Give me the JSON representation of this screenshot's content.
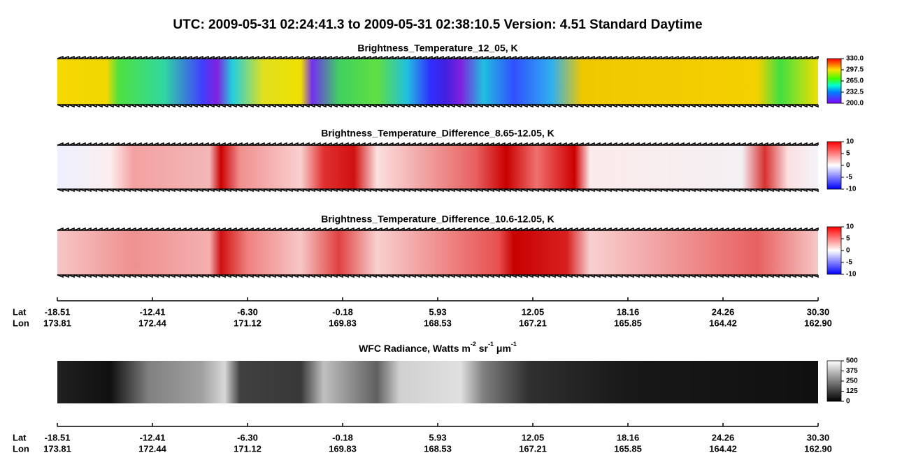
{
  "title": "UTC:  2009-05-31   02:24:41.3  to  2009-05-31   02:38:10.5    Version: 4.51  Standard Daytime",
  "panels": [
    {
      "title": "Brightness_Temperature_12_05, K",
      "colormap": "rainbow",
      "colorbar": {
        "lim": [
          200,
          330
        ],
        "ticks": [
          {
            "value": 330,
            "label": "330.0"
          },
          {
            "value": 297.5,
            "label": "297.5"
          },
          {
            "value": 265,
            "label": "265.0"
          },
          {
            "value": 232.5,
            "label": "232.5"
          },
          {
            "value": 200,
            "label": "200.0"
          }
        ]
      }
    },
    {
      "title": "Brightness_Temperature_Difference_8.65-12.05, K",
      "colormap": "bwr",
      "colorbar": {
        "lim": [
          -10,
          10
        ],
        "ticks": [
          10,
          5,
          0,
          -5,
          -10
        ]
      }
    },
    {
      "title": "Brightness_Temperature_Difference_10.6-12.05, K",
      "colormap": "bwr",
      "colorbar": {
        "lim": [
          -10,
          10
        ],
        "ticks": [
          10,
          5,
          0,
          -5,
          -10
        ]
      }
    },
    {
      "title_parts": [
        "WFC Radiance, Watts m",
        "-2",
        " sr",
        "-1",
        " μm",
        "-1"
      ],
      "colormap": "gray",
      "colorbar": {
        "lim": [
          0,
          500
        ],
        "ticks": [
          500,
          375,
          250,
          125,
          0
        ]
      }
    }
  ],
  "axes": [
    {
      "lat_label": "Lat",
      "lon_label": "Lon",
      "lat": [
        "-18.51",
        "-12.41",
        "-6.30",
        "-0.18",
        "5.93",
        "12.05",
        "18.16",
        "24.26",
        "30.30"
      ],
      "lon": [
        "173.81",
        "172.44",
        "171.12",
        "169.83",
        "168.53",
        "167.21",
        "165.85",
        "164.42",
        "162.90"
      ]
    },
    {
      "lat_label": "Lat",
      "lon_label": "Lon",
      "lat": [
        "-18.51",
        "-12.41",
        "-6.30",
        "-0.18",
        "5.93",
        "12.05",
        "18.16",
        "24.26",
        "30.30"
      ],
      "lon": [
        "173.81",
        "172.44",
        "171.12",
        "169.83",
        "168.53",
        "167.21",
        "165.85",
        "164.42",
        "162.90"
      ]
    }
  ]
}
